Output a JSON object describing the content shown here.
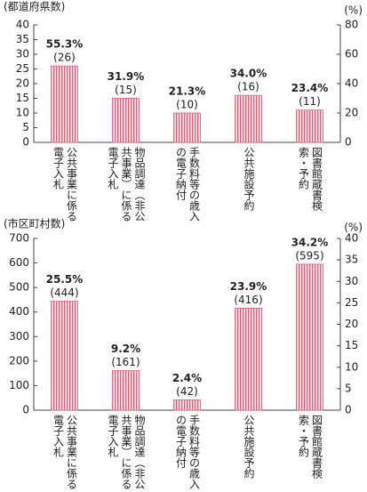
{
  "chart_data": [
    {
      "type": "bar",
      "y_label": "(都道府県数)",
      "y2_label": "(%)",
      "categories": [
        "公共事業に係る電子入札",
        "物品調達（非公共事業）に係る電子入札",
        "手数料等の歳入の電子納付",
        "公共施設予約",
        "図書館蔵書検索・予約"
      ],
      "values": [
        26,
        15,
        10,
        16,
        11
      ],
      "value_labels": [
        "(26)",
        "(15)",
        "(10)",
        "(16)",
        "(11)"
      ],
      "percent_labels": [
        "55.3%",
        "31.9%",
        "21.3%",
        "34.0%",
        "23.4%"
      ],
      "color": "#e0607a",
      "ylim": [
        0,
        40
      ],
      "yticks": [
        0,
        5,
        10,
        15,
        20,
        25,
        30,
        35,
        40
      ],
      "y2lim": [
        0,
        80
      ],
      "y2ticks": [
        0,
        20,
        40,
        60,
        80
      ]
    },
    {
      "type": "bar",
      "y_label": "(市区町村数)",
      "y2_label": "(%)",
      "categories": [
        "公共事業に係る電子入札",
        "物品調達（非公共事業）に係る電子入札",
        "手数料等の歳入の電子納付",
        "公共施設予約",
        "図書館蔵書検索・予約"
      ],
      "values": [
        444,
        161,
        42,
        416,
        595
      ],
      "value_labels": [
        "(444)",
        "(161)",
        "(42)",
        "(416)",
        "(595)"
      ],
      "percent_labels": [
        "25.5%",
        "9.2%",
        "2.4%",
        "23.9%",
        "34.2%"
      ],
      "color": "#e0607a",
      "ylim": [
        0,
        700
      ],
      "yticks": [
        0,
        100,
        200,
        300,
        400,
        500,
        600,
        700
      ],
      "y2lim": [
        0,
        40
      ],
      "y2ticks": [
        0,
        5,
        10,
        15,
        20,
        25,
        30,
        35,
        40
      ]
    }
  ]
}
